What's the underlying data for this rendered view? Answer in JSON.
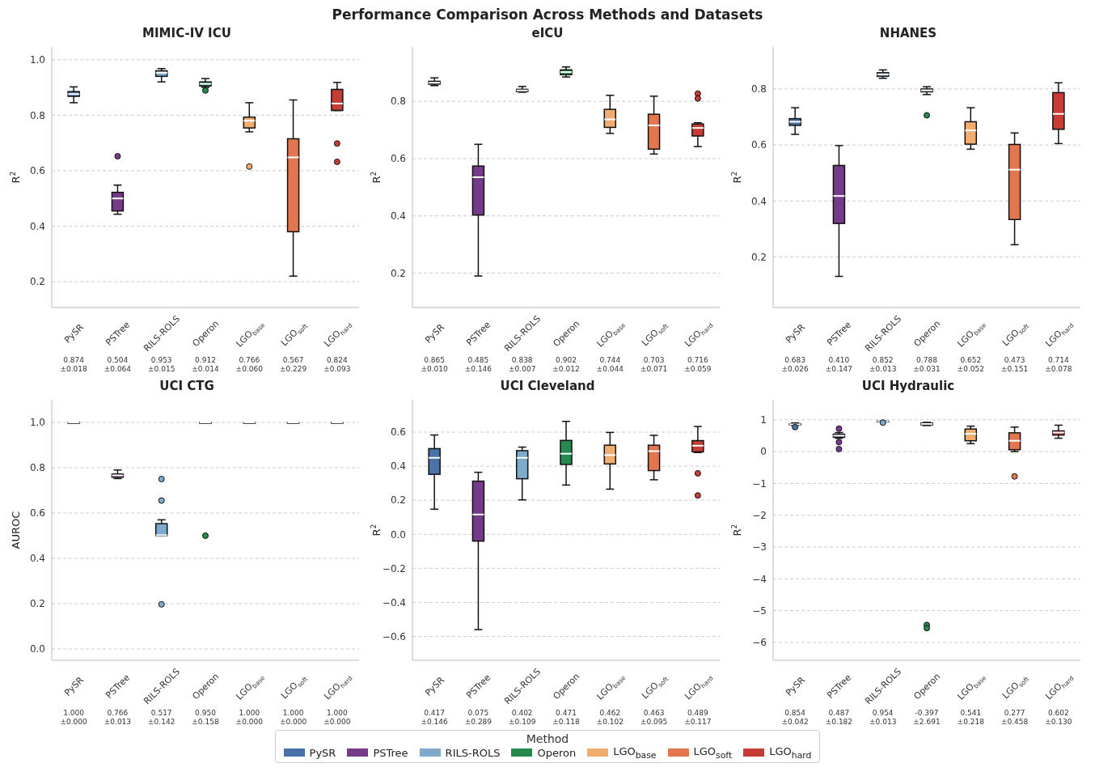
{
  "chart_data": [
    {
      "type": "box",
      "title": "MIMIC-IV ICU",
      "ylabel": "R$^{2}$",
      "categories": [
        "PySR",
        "PSTree",
        "RILS-ROLS",
        "Operon",
        "LGO$_{base}$",
        "LGO$_{soft}$",
        "LGO$_{hard}$"
      ],
      "ylim": [
        0.107,
        1.046
      ],
      "yticks": [
        0.2,
        0.4,
        0.6,
        0.8,
        {
          "value": 1,
          "label": "1.0"
        }
      ],
      "grid": "y",
      "series": [
        {
          "color": "#4a72aa",
          "boxes": [
            {
              "low": 0.845,
              "q1": 0.868,
              "median": 0.876,
              "q3": 0.885,
              "high": 0.902
            },
            null,
            null,
            null,
            null,
            null,
            null
          ]
        },
        {
          "color": "#763a8a",
          "boxes": [
            null,
            {
              "low": 0.443,
              "q1": 0.455,
              "median": 0.5,
              "q3": 0.522,
              "high": 0.548,
              "outliers": [
                0.652
              ]
            },
            null,
            null,
            null,
            null,
            null
          ]
        },
        {
          "color": "#7eaacb",
          "boxes": [
            null,
            null,
            {
              "low": 0.92,
              "q1": 0.94,
              "median": 0.953,
              "q3": 0.96,
              "high": 0.968
            },
            null,
            null,
            null,
            null
          ]
        },
        {
          "color": "#268a4f",
          "boxes": [
            null,
            null,
            null,
            {
              "low": 0.9,
              "q1": 0.905,
              "median": 0.913,
              "q3": 0.92,
              "high": 0.932,
              "outliers": [
                0.889
              ]
            },
            null,
            null,
            null
          ]
        },
        {
          "color": "#f0ad6e",
          "boxes": [
            null,
            null,
            null,
            null,
            {
              "low": 0.74,
              "q1": 0.754,
              "median": 0.78,
              "q3": 0.793,
              "high": 0.845,
              "outliers": [
                0.615
              ]
            },
            null,
            null
          ]
        },
        {
          "color": "#e4764f",
          "boxes": [
            null,
            null,
            null,
            null,
            null,
            {
              "low": 0.22,
              "q1": 0.38,
              "median": 0.648,
              "q3": 0.715,
              "high": 0.855
            },
            null
          ]
        },
        {
          "color": "#c73d35",
          "boxes": [
            null,
            null,
            null,
            null,
            null,
            null,
            {
              "low": 0.817,
              "q1": 0.817,
              "median": 0.842,
              "q3": 0.893,
              "high": 0.918,
              "outliers": [
                0.698,
                0.632
              ]
            }
          ]
        }
      ],
      "annotations": [
        "0.874\n±0.018",
        "0.504\n±0.064",
        "0.953\n±0.015",
        "0.912\n±0.014",
        "0.766\n±0.060",
        "0.567\n±0.229",
        "0.824\n±0.093"
      ]
    },
    {
      "type": "box",
      "title": "eICU",
      "subtitle": "Performance Comparison Across Methods and Datasets",
      "ylabel": "R$^{2}$",
      "categories": [
        "PySR",
        "PSTree",
        "RILS-ROLS",
        "Operon",
        "LGO$_{base}$",
        "LGO$_{soft}$",
        "LGO$_{hard}$"
      ],
      "ylim": [
        0.08,
        0.99
      ],
      "yticks": [
        0.2,
        0.4,
        0.6,
        0.8
      ],
      "grid": "y",
      "series": [
        {
          "color": "#4a72aa",
          "boxes": [
            {
              "low": 0.855,
              "q1": 0.86,
              "median": 0.865,
              "q3": 0.87,
              "high": 0.882
            },
            null,
            null,
            null,
            null,
            null,
            null
          ]
        },
        {
          "color": "#763a8a",
          "boxes": [
            null,
            {
              "low": 0.19,
              "q1": 0.403,
              "median": 0.535,
              "q3": 0.574,
              "high": 0.65
            },
            null,
            null,
            null,
            null,
            null
          ]
        },
        {
          "color": "#7eaacb",
          "boxes": [
            null,
            null,
            {
              "low": 0.832,
              "q1": 0.834,
              "median": 0.838,
              "q3": 0.842,
              "high": 0.852
            },
            null,
            null,
            null,
            null
          ]
        },
        {
          "color": "#268a4f",
          "boxes": [
            null,
            null,
            null,
            {
              "low": 0.885,
              "q1": 0.893,
              "median": 0.902,
              "q3": 0.91,
              "high": 0.92
            },
            null,
            null,
            null
          ]
        },
        {
          "color": "#f0ad6e",
          "boxes": [
            null,
            null,
            null,
            null,
            {
              "low": 0.688,
              "q1": 0.709,
              "median": 0.737,
              "q3": 0.772,
              "high": 0.821
            },
            null,
            null
          ]
        },
        {
          "color": "#e4764f",
          "boxes": [
            null,
            null,
            null,
            null,
            null,
            {
              "low": 0.616,
              "q1": 0.633,
              "median": 0.716,
              "q3": 0.755,
              "high": 0.818
            },
            null
          ]
        },
        {
          "color": "#c73d35",
          "boxes": [
            null,
            null,
            null,
            null,
            null,
            null,
            {
              "low": 0.642,
              "q1": 0.679,
              "median": 0.707,
              "q3": 0.721,
              "high": 0.725,
              "outliers": [
                0.827,
                0.81
              ]
            }
          ]
        }
      ],
      "annotations": [
        "0.865\n±0.010",
        "0.485\n±0.146",
        "0.838\n±0.007",
        "0.902\n±0.012",
        "0.744\n±0.044",
        "0.703\n±0.071",
        "0.716\n±0.059"
      ]
    },
    {
      "type": "box",
      "title": "NHANES",
      "ylabel": "R$^{2}$",
      "categories": [
        "PySR",
        "PSTree",
        "RILS-ROLS",
        "Operon",
        "LGO$_{base}$",
        "LGO$_{soft}$",
        "LGO$_{hard}$"
      ],
      "ylim": [
        0.02,
        0.95
      ],
      "yticks": [
        0.2,
        0.4,
        0.6,
        0.8
      ],
      "grid": "y",
      "series": [
        {
          "color": "#4a72aa",
          "boxes": [
            {
              "low": 0.638,
              "q1": 0.67,
              "median": 0.683,
              "q3": 0.694,
              "high": 0.733
            },
            null,
            null,
            null,
            null,
            null,
            null
          ]
        },
        {
          "color": "#763a8a",
          "boxes": [
            null,
            {
              "low": 0.131,
              "q1": 0.32,
              "median": 0.418,
              "q3": 0.527,
              "high": 0.598
            },
            null,
            null,
            null,
            null,
            null
          ]
        },
        {
          "color": "#7eaacb",
          "boxes": [
            null,
            null,
            {
              "low": 0.838,
              "q1": 0.845,
              "median": 0.852,
              "q3": 0.858,
              "high": 0.868
            },
            null,
            null,
            null,
            null
          ]
        },
        {
          "color": "#268a4f",
          "boxes": [
            null,
            null,
            null,
            {
              "low": 0.78,
              "q1": 0.79,
              "median": 0.795,
              "q3": 0.8,
              "high": 0.808,
              "outliers": [
                0.706
              ]
            },
            null,
            null,
            null
          ]
        },
        {
          "color": "#f0ad6e",
          "boxes": [
            null,
            null,
            null,
            null,
            {
              "low": 0.585,
              "q1": 0.603,
              "median": 0.652,
              "q3": 0.683,
              "high": 0.733
            },
            null,
            null
          ]
        },
        {
          "color": "#e4764f",
          "boxes": [
            null,
            null,
            null,
            null,
            null,
            {
              "low": 0.244,
              "q1": 0.334,
              "median": 0.512,
              "q3": 0.602,
              "high": 0.643
            },
            null
          ]
        },
        {
          "color": "#c73d35",
          "boxes": [
            null,
            null,
            null,
            null,
            null,
            null,
            {
              "low": 0.605,
              "q1": 0.656,
              "median": 0.711,
              "q3": 0.787,
              "high": 0.822
            }
          ]
        }
      ],
      "annotations": [
        "0.683\n±0.026",
        "0.410\n±0.147",
        "0.852\n±0.013",
        "0.788\n±0.031",
        "0.652\n±0.052",
        "0.473\n±0.151",
        "0.714\n±0.078"
      ]
    },
    {
      "type": "box",
      "title": "UCI CTG",
      "ylabel": "AUROC",
      "categories": [
        "PySR",
        "PSTree",
        "RILS-ROLS",
        "Operon",
        "LGO$_{base}$",
        "LGO$_{soft}$",
        "LGO$_{hard}$"
      ],
      "ylim": [
        -0.05,
        1.1
      ],
      "yticks": [
        {
          "value": 0,
          "label": "0.0"
        },
        0.2,
        0.4,
        0.6,
        0.8,
        {
          "value": 1,
          "label": "1.0"
        }
      ],
      "grid": "y",
      "series": [
        {
          "color": "#4a72aa",
          "boxes": [
            {
              "low": 1,
              "q1": 1,
              "median": 1,
              "q3": 1,
              "high": 1
            },
            null,
            null,
            null,
            null,
            null,
            null
          ]
        },
        {
          "color": "#763a8a",
          "boxes": [
            null,
            {
              "low": 0.752,
              "q1": 0.758,
              "median": 0.766,
              "q3": 0.772,
              "high": 0.79
            },
            null,
            null,
            null,
            null,
            null
          ]
        },
        {
          "color": "#7eaacb",
          "boxes": [
            null,
            null,
            {
              "low": 0.5,
              "q1": 0.5,
              "median": 0.502,
              "q3": 0.553,
              "high": 0.57,
              "outliers": [
                0.75,
                0.655,
                0.197
              ]
            },
            null,
            null,
            null,
            null
          ]
        },
        {
          "color": "#268a4f",
          "boxes": [
            null,
            null,
            null,
            {
              "low": 1,
              "q1": 1,
              "median": 1,
              "q3": 1,
              "high": 1,
              "outliers": [
                0.5
              ]
            },
            null,
            null,
            null
          ]
        },
        {
          "color": "#f0ad6e",
          "boxes": [
            null,
            null,
            null,
            null,
            {
              "low": 1,
              "q1": 1,
              "median": 1,
              "q3": 1,
              "high": 1
            },
            null,
            null
          ]
        },
        {
          "color": "#e4764f",
          "boxes": [
            null,
            null,
            null,
            null,
            null,
            {
              "low": 1,
              "q1": 1,
              "median": 1,
              "q3": 1,
              "high": 1
            },
            null
          ]
        },
        {
          "color": "#c73d35",
          "boxes": [
            null,
            null,
            null,
            null,
            null,
            null,
            {
              "low": 1,
              "q1": 1,
              "median": 1,
              "q3": 1,
              "high": 1
            }
          ]
        }
      ],
      "annotations": [
        "1.000\n±0.000",
        "0.766\n±0.013",
        "0.517\n±0.142",
        "0.950\n±0.158",
        "1.000\n±0.000",
        "1.000\n±0.000",
        "1.000\n±0.000"
      ]
    },
    {
      "type": "box",
      "title": "UCI Cleveland",
      "ylabel": "R$^{2}$",
      "categories": [
        "PySR",
        "PSTree",
        "RILS-ROLS",
        "Operon",
        "LGO$_{base}$",
        "LGO$_{soft}$",
        "LGO$_{hard}$"
      ],
      "ylim": [
        -0.74,
        0.79
      ],
      "yticks": [
        {
          "value": -0.6,
          "label": "−0.6"
        },
        {
          "value": -0.4,
          "label": "−0.4"
        },
        {
          "value": -0.2,
          "label": "−0.2"
        },
        {
          "value": 0,
          "label": "0.0"
        },
        0.2,
        0.4,
        0.6
      ],
      "grid": "y",
      "legend": "bottom",
      "legend_title": "Method",
      "series": [
        {
          "name": "PySR",
          "color": "#4a72aa",
          "boxes": [
            {
              "low": 0.147,
              "q1": 0.352,
              "median": 0.449,
              "q3": 0.503,
              "high": 0.583
            },
            null,
            null,
            null,
            null,
            null,
            null
          ]
        },
        {
          "name": "PSTree",
          "color": "#763a8a",
          "boxes": [
            null,
            {
              "low": -0.56,
              "q1": -0.04,
              "median": 0.116,
              "q3": 0.312,
              "high": 0.364
            },
            null,
            null,
            null,
            null,
            null
          ]
        },
        {
          "name": "RILS-ROLS",
          "color": "#7eaacb",
          "boxes": [
            null,
            null,
            {
              "low": 0.202,
              "q1": 0.326,
              "median": 0.449,
              "q3": 0.491,
              "high": 0.512
            },
            null,
            null,
            null,
            null
          ]
        },
        {
          "name": "Operon",
          "color": "#268a4f",
          "boxes": [
            null,
            null,
            null,
            {
              "low": 0.289,
              "q1": 0.41,
              "median": 0.473,
              "q3": 0.551,
              "high": 0.663
            },
            null,
            null,
            null
          ]
        },
        {
          "name": "LGO$_{base}$",
          "color": "#f0ad6e",
          "boxes": [
            null,
            null,
            null,
            null,
            {
              "low": 0.265,
              "q1": 0.413,
              "median": 0.465,
              "q3": 0.523,
              "high": 0.598
            },
            null,
            null
          ]
        },
        {
          "name": "LGO$_{soft}$",
          "color": "#e4764f",
          "boxes": [
            null,
            null,
            null,
            null,
            null,
            {
              "low": 0.32,
              "q1": 0.374,
              "median": 0.488,
              "q3": 0.523,
              "high": 0.581
            },
            null
          ]
        },
        {
          "name": "LGO$_{hard}$",
          "color": "#c73d35",
          "boxes": [
            null,
            null,
            null,
            null,
            null,
            null,
            {
              "low": 0.48,
              "q1": 0.484,
              "median": 0.52,
              "q3": 0.55,
              "high": 0.633,
              "outliers": [
                0.358,
                0.228
              ]
            }
          ]
        }
      ],
      "annotations": [
        "0.417\n±0.146",
        "0.075\n±0.289",
        "0.402\n±0.109",
        "0.471\n±0.118",
        "0.462\n±0.102",
        "0.463\n±0.095",
        "0.489\n±0.117"
      ]
    },
    {
      "type": "box",
      "title": "UCI Hydraulic",
      "ylabel": "R$^{2}$",
      "categories": [
        "PySR",
        "PSTree",
        "RILS-ROLS",
        "Operon",
        "LGO$_{base}$",
        "LGO$_{soft}$",
        "LGO$_{hard}$"
      ],
      "ylim": [
        -6.56,
        1.63
      ],
      "yticks": [
        {
          "value": -6,
          "label": "−6"
        },
        {
          "value": -5,
          "label": "−5"
        },
        {
          "value": -4,
          "label": "−4"
        },
        {
          "value": -3,
          "label": "−3"
        },
        {
          "value": -2,
          "label": "−2"
        },
        {
          "value": -1,
          "label": "−1"
        },
        0,
        1
      ],
      "grid": "y",
      "series": [
        {
          "color": "#4a72aa",
          "boxes": [
            {
              "low": 0.82,
              "q1": 0.84,
              "median": 0.855,
              "q3": 0.87,
              "high": 0.9,
              "outliers": [
                0.77
              ]
            },
            null,
            null,
            null,
            null,
            null,
            null
          ]
        },
        {
          "color": "#763a8a",
          "boxes": [
            null,
            {
              "low": 0.42,
              "q1": 0.45,
              "median": 0.5,
              "q3": 0.55,
              "high": 0.6,
              "outliers": [
                0.72,
                0.3,
                0.08
              ]
            },
            null,
            null,
            null,
            null,
            null
          ]
        },
        {
          "color": "#7eaacb",
          "boxes": [
            null,
            null,
            {
              "low": 0.94,
              "q1": 0.95,
              "median": 0.955,
              "q3": 0.96,
              "high": 0.97,
              "outliers": [
                0.91
              ]
            },
            null,
            null,
            null,
            null
          ]
        },
        {
          "color": "#268a4f",
          "boxes": [
            null,
            null,
            null,
            {
              "low": 0.82,
              "q1": 0.84,
              "median": 0.87,
              "q3": 0.9,
              "high": 0.92,
              "outliers": [
                -5.45,
                -5.55
              ]
            },
            null,
            null,
            null
          ]
        },
        {
          "color": "#f0ad6e",
          "boxes": [
            null,
            null,
            null,
            null,
            {
              "low": 0.25,
              "q1": 0.34,
              "median": 0.56,
              "q3": 0.71,
              "high": 0.8
            },
            null,
            null
          ]
        },
        {
          "color": "#e4764f",
          "boxes": [
            null,
            null,
            null,
            null,
            null,
            {
              "low": 0,
              "q1": 0.06,
              "median": 0.34,
              "q3": 0.59,
              "high": 0.77,
              "outliers": [
                -0.78
              ]
            },
            null
          ]
        },
        {
          "color": "#c73d35",
          "boxes": [
            null,
            null,
            null,
            null,
            null,
            null,
            {
              "low": 0.42,
              "q1": 0.52,
              "median": 0.6,
              "q3": 0.65,
              "high": 0.83
            }
          ]
        }
      ],
      "annotations": [
        "0.854\n±0.042",
        "0.487\n±0.182",
        "0.954\n±0.013",
        "-0.397\n±2.691",
        "0.541\n±0.218",
        "0.277\n±0.458",
        "0.602\n±0.130"
      ]
    }
  ]
}
